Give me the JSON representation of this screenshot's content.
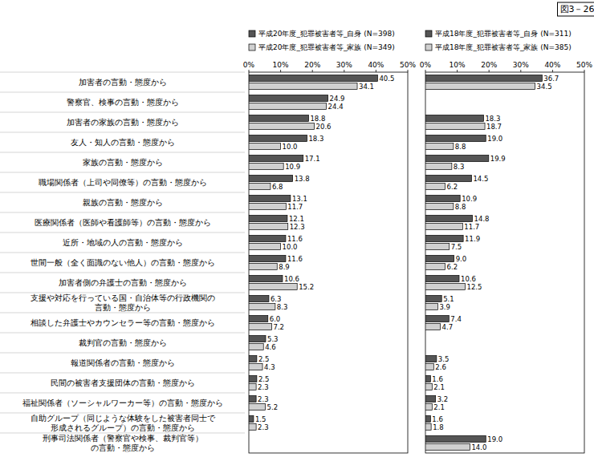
{
  "chart_data": [
    {
      "type": "bar",
      "title": "図3－26",
      "orientation": "horizontal",
      "data_labels": true,
      "legend": "top",
      "categories": [
        "加害者の言動・態度から",
        "警察官、検事の言動・態度から",
        "加害者の家族の言動・態度から",
        "友人・知人の言動・態度から",
        "家族の言動・態度から",
        "職場関係者（上司や同僚等）の言動・態度から",
        "親族の言動・態度から",
        "医療関係者（医師や看護師等）の言動・態度から",
        "近所・地域の人の言動・態度から",
        "世間一般（全く面識のない他人）の言動・態度から",
        "加害者側の弁護士の言動・態度から",
        "支援や対応を行っている国・自治体等の行政機関の\n言動・態度から",
        "相談した弁護士やカウンセラー等の言動・態度から",
        "裁判官の言動・態度から",
        "報道関係者の言動・態度から",
        "民間の被害者支援団体の言動・態度から",
        "福祉関係者（ソーシャルワーカー等）の言動・態度から",
        "自助グループ（同じような体験をした被害者同士で\n形成されるグループ）の言動・態度から",
        "刑事司法関係者（警察官や検事、裁判官等）\nの言動・態度から"
      ],
      "series": [
        {
          "name": "平成20年度_犯罪被害者等_自身 (N=398)",
          "color": "#555555",
          "values": [
            40.5,
            24.9,
            18.8,
            18.3,
            17.1,
            13.8,
            13.1,
            12.1,
            11.6,
            11.6,
            10.6,
            6.3,
            6.0,
            5.3,
            2.5,
            2.5,
            2.3,
            1.5,
            null
          ],
          "value_labels": [
            "40.5",
            "24.9",
            "18.8",
            "18.3",
            "17.1",
            "13.8",
            "13.1",
            "12.1",
            "11.6",
            "11.6",
            "10.6",
            "6.3",
            "6.0",
            "5.3",
            "2.5",
            "2.5",
            "2.3",
            "1.5",
            null
          ]
        },
        {
          "name": "平成20年度_犯罪被害者等_家族 (N=349)",
          "color": "#d0d0d0",
          "values": [
            34.1,
            24.4,
            20.6,
            10.0,
            10.9,
            6.8,
            11.7,
            12.3,
            10.0,
            8.9,
            15.2,
            8.3,
            7.2,
            4.6,
            4.3,
            2.3,
            5.2,
            2.3,
            null
          ],
          "value_labels": [
            "34.1",
            "24.4",
            "20.6",
            "10.0",
            "10.9",
            "6.8",
            "11.7",
            "12.3",
            "10.0",
            "8.9",
            "15.2",
            "8.3",
            "7.2",
            "4.6",
            "4.3",
            "2.3",
            "5.2",
            "2.3",
            null
          ]
        }
      ],
      "xlim": [
        0,
        50
      ],
      "xticks": [
        {
          "value": 0,
          "label": "0%"
        },
        {
          "value": 10,
          "label": "10%"
        },
        {
          "value": 20,
          "label": "20%"
        },
        {
          "value": 30,
          "label": "30%"
        },
        {
          "value": 40,
          "label": "40%"
        },
        {
          "value": 50,
          "label": "50%"
        }
      ]
    },
    {
      "type": "bar",
      "orientation": "horizontal",
      "data_labels": true,
      "legend": "top",
      "categories": [
        null,
        null,
        null,
        null,
        null,
        null,
        null,
        null,
        null,
        null,
        null,
        null,
        null,
        null,
        null,
        null,
        null,
        null,
        null
      ],
      "series": [
        {
          "name": "平成18年度_犯罪被害者等_自身 (N=311)",
          "color": "#555555",
          "values": [
            36.7,
            null,
            18.3,
            19.0,
            19.9,
            14.5,
            10.9,
            14.8,
            11.9,
            9.0,
            10.6,
            5.1,
            7.4,
            null,
            3.5,
            1.6,
            3.2,
            1.6,
            19.0
          ],
          "value_labels": [
            "36.7",
            null,
            "18.3",
            "19.0",
            "19.9",
            "14.5",
            "10.9",
            "14.8",
            "11.9",
            "9.0",
            "10.6",
            "5.1",
            "7.4",
            null,
            "3.5",
            "1.6",
            "3.2",
            "1.6",
            "19.0"
          ]
        },
        {
          "name": "平成18年度_犯罪被害者等_家族 (N=385)",
          "color": "#d0d0d0",
          "values": [
            34.5,
            null,
            18.7,
            8.8,
            8.3,
            6.2,
            8.8,
            11.7,
            7.5,
            6.2,
            12.5,
            3.9,
            4.7,
            null,
            2.6,
            2.1,
            2.1,
            1.8,
            14.0
          ],
          "value_labels": [
            "34.5",
            null,
            "18.7",
            "8.8",
            "8.3",
            "6.2",
            "8.8",
            "11.7",
            "7.5",
            "6.2",
            "12.5",
            "3.9",
            "4.7",
            null,
            "2.6",
            "2.1",
            "2.1",
            "1.8",
            "14.0"
          ]
        }
      ],
      "xlim": [
        0,
        50
      ],
      "xticks": [
        {
          "value": 0,
          "label": "0%"
        },
        {
          "value": 10,
          "label": "10%"
        },
        {
          "value": 20,
          "label": "20%"
        },
        {
          "value": 30,
          "label": "30%"
        },
        {
          "value": 40,
          "label": "40%"
        },
        {
          "value": 50,
          "label": "50%"
        }
      ]
    }
  ]
}
